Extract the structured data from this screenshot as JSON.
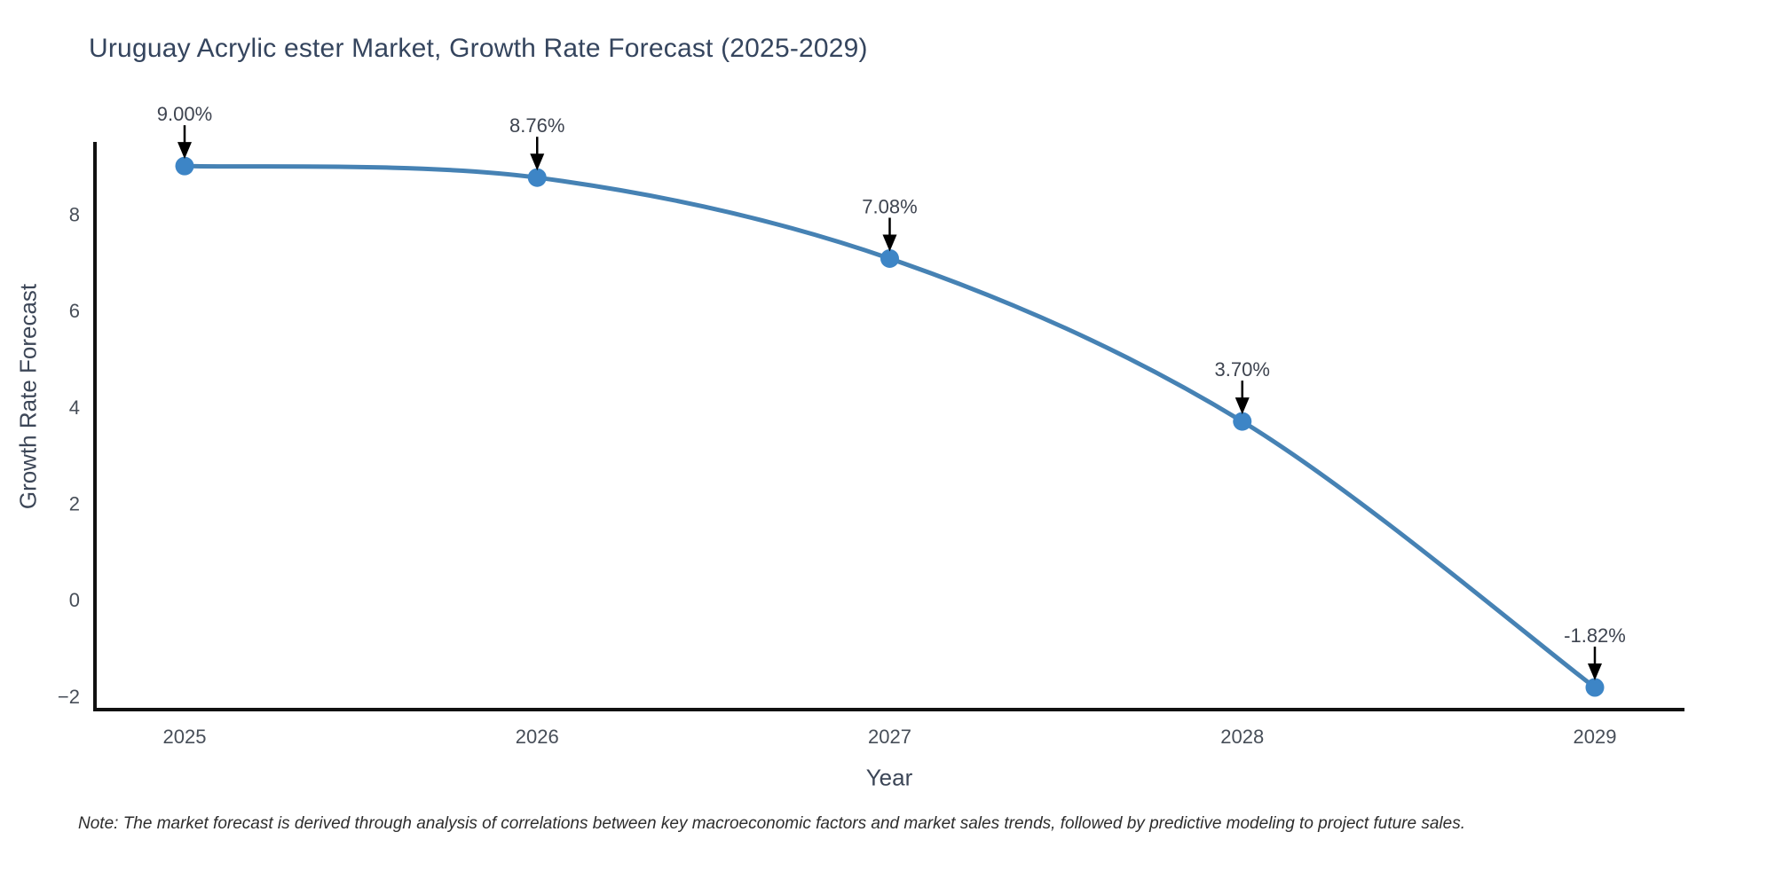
{
  "page": {
    "background": "#ffffff"
  },
  "header": {
    "title": "Uruguay Acrylic ester Market, Growth Rate Forecast (2025-2029)"
  },
  "footnote": "Note: The market forecast is derived through analysis of correlations between key macroeconomic factors and market sales trends, followed by predictive modeling to project future sales.",
  "chart_data": {
    "type": "line",
    "title": "Uruguay Acrylic ester Market, Growth Rate Forecast (2025-2029)",
    "xlabel": "Year",
    "ylabel": "Growth Rate Forecast",
    "x": [
      2025,
      2026,
      2027,
      2028,
      2029
    ],
    "values": [
      9.0,
      8.76,
      7.08,
      3.7,
      -1.82
    ],
    "point_labels": [
      "9.00%",
      "8.76%",
      "7.08%",
      "3.70%",
      "-1.82%"
    ],
    "yticks": [
      -2,
      0,
      2,
      4,
      6,
      8
    ],
    "ytick_labels": [
      "−2",
      "0",
      "2",
      "4",
      "6",
      "8"
    ],
    "ylim": [
      -2.28,
      9.5
    ],
    "line_shape": "spline",
    "grid": false,
    "legend": "none",
    "colors": {
      "line": "#4682b4",
      "marker": "#3d85c6",
      "arrow": "#000000",
      "axis": "#111111",
      "title": "#35455e",
      "axis_label": "#3c4657",
      "tick": "#474e58",
      "annotation": "#3e4450",
      "note": "#2d2d2d"
    }
  }
}
